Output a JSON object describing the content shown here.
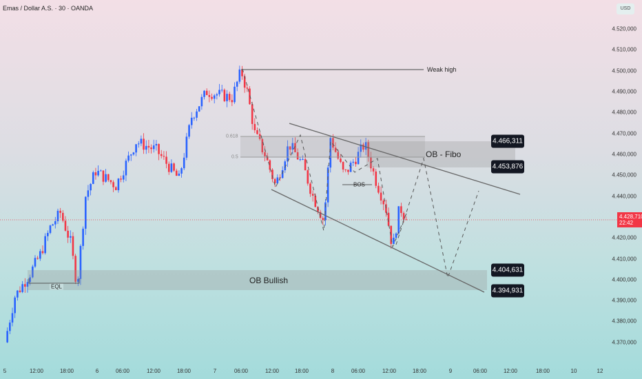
{
  "header": {
    "title": "Emas / Dollar A.S. · 30 · OANDA"
  },
  "price_axis": {
    "currency": "USD",
    "labels": [
      "4.520,000",
      "4.510,000",
      "4.500,000",
      "4.490,000",
      "4.480,000",
      "4.470,000",
      "4.460,000",
      "4.450,000",
      "4.440,000",
      "4.420,000",
      "4.410,000",
      "4.400,000",
      "4.390,000",
      "4.380,000",
      "4.370,000"
    ],
    "current_price": "4.428,710",
    "countdown": "22:42"
  },
  "time_axis": [
    "5",
    "12:00",
    "18:00",
    "6",
    "06:00",
    "12:00",
    "18:00",
    "7",
    "06:00",
    "12:00",
    "18:00",
    "8",
    "06:00",
    "12:00",
    "18:00",
    "9",
    "06:00",
    "12:00",
    "18:00",
    "10",
    "12"
  ],
  "annotations": {
    "weak_high": "Weak high",
    "fib_618": "0.618",
    "fib_5": "0.5",
    "ob_fibo": "OB - Fibo",
    "bos": "BOS",
    "ob_bullish": "OB Bullish",
    "eql": "EQL",
    "tag1": "4.466,311",
    "tag2": "4.453,876",
    "tag3": "4.404,631",
    "tag4": "4.394,931"
  },
  "colors": {
    "up": "#2962ff",
    "down": "#f23645"
  },
  "chart_data": {
    "type": "candlestick",
    "timeframe": "30",
    "ylim": [
      4.365,
      4.525
    ],
    "path": [
      [
        0,
        4.37
      ],
      [
        2,
        4.392
      ],
      [
        5,
        4.403
      ],
      [
        7,
        4.412
      ],
      [
        9,
        4.425
      ],
      [
        11,
        4.432
      ],
      [
        13,
        4.418
      ],
      [
        14.3,
        4.397
      ],
      [
        16,
        4.44
      ],
      [
        18,
        4.452
      ],
      [
        22,
        4.445
      ],
      [
        26,
        4.466
      ],
      [
        30,
        4.462
      ],
      [
        34.5,
        4.448
      ],
      [
        37,
        4.478
      ],
      [
        40,
        4.49
      ],
      [
        45,
        4.487
      ],
      [
        46.8,
        4.5
      ],
      [
        48,
        4.49
      ],
      [
        49.5,
        4.47
      ],
      [
        51.5,
        4.46
      ],
      [
        53.6,
        4.445
      ],
      [
        56.3,
        4.465
      ],
      [
        59,
        4.455
      ],
      [
        61,
        4.44
      ],
      [
        63.2,
        4.428
      ],
      [
        64.5,
        4.468
      ],
      [
        67.2,
        4.45
      ],
      [
        70,
        4.46
      ],
      [
        71.3,
        4.465
      ],
      [
        73.4,
        4.448
      ],
      [
        75.4,
        4.435
      ],
      [
        76.8,
        4.415
      ],
      [
        78.2,
        4.435
      ],
      [
        79.5,
        4.4287
      ]
    ]
  }
}
